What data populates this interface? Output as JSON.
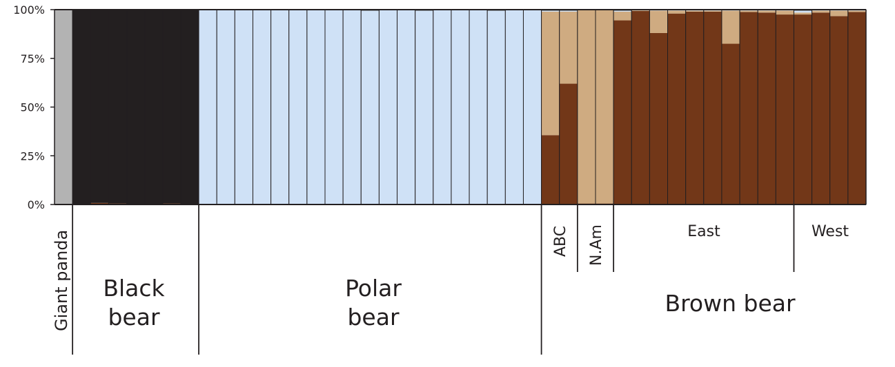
{
  "chart_data": {
    "type": "bar",
    "stacked": true,
    "title": "",
    "xlabel": "",
    "ylabel": "",
    "ylim": [
      0,
      100
    ],
    "y_ticks": [
      "0%",
      "25%",
      "50%",
      "75%",
      "100%"
    ],
    "colors": {
      "giant_panda": "#b3b3b3",
      "black_bear": "#231f20",
      "polar_bear": "#cfe1f6",
      "brown_bear": "#723718",
      "abc_clade": "#cfab81"
    },
    "bar_groups": [
      {
        "name": "Giant panda",
        "count": 1
      },
      {
        "name": "Black bear",
        "count": 7
      },
      {
        "name": "Polar bear",
        "count": 19
      },
      {
        "name": "ABC",
        "count": 2
      },
      {
        "name": "N.Am",
        "count": 2
      },
      {
        "name": "East",
        "count": 10
      },
      {
        "name": "West",
        "count": 4
      }
    ],
    "series": [
      {
        "key": "brown_bear",
        "color": "#723718",
        "values": [
          0,
          0.3,
          0.8,
          0.5,
          0.3,
          0.3,
          0.5,
          0.3,
          0,
          0,
          0,
          0,
          0,
          0,
          0,
          0,
          0,
          0,
          0,
          0,
          0,
          0,
          0,
          0,
          0,
          0,
          0,
          35.6,
          62,
          0.5,
          0.5,
          94.5,
          99.3,
          88,
          98,
          99,
          99,
          82.5,
          98.8,
          98.5,
          97.5,
          97.5,
          98.5,
          96.7,
          98.8
        ]
      },
      {
        "key": "abc_clade",
        "color": "#cfab81",
        "values": [
          0,
          0,
          0,
          0,
          0,
          0,
          0,
          0,
          0,
          0,
          0,
          0,
          0,
          0,
          0,
          0,
          0,
          0,
          0,
          0,
          0,
          0,
          0,
          0,
          0,
          0,
          0,
          63.4,
          37,
          99.5,
          99.5,
          4.5,
          0.3,
          11.5,
          1.5,
          0.5,
          0.5,
          17,
          0.7,
          1,
          2,
          1,
          1,
          2.8,
          0.7
        ]
      },
      {
        "key": "polar_bear",
        "color": "#cfe1f6",
        "values": [
          0,
          0,
          0,
          0,
          0,
          0,
          0,
          0,
          100,
          100,
          100,
          100,
          100,
          100,
          100,
          100,
          100,
          99.5,
          100,
          100,
          99.5,
          100,
          100,
          100,
          99.5,
          100,
          100,
          0.5,
          0.5,
          0,
          0,
          0.5,
          0.2,
          0.2,
          0.2,
          0.2,
          0.2,
          0.2,
          0.2,
          0.2,
          0.2,
          1,
          0.3,
          0.3,
          0.3
        ]
      },
      {
        "key": "black_bear",
        "color": "#231f20",
        "values": [
          0,
          99.7,
          99.2,
          99.5,
          99.7,
          99.7,
          99.5,
          99.7,
          0,
          0,
          0,
          0,
          0,
          0,
          0,
          0,
          0,
          0.5,
          0,
          0,
          0.5,
          0,
          0,
          0,
          0.5,
          0,
          0,
          0.5,
          0.5,
          0,
          0,
          0.5,
          0.2,
          0.3,
          0.3,
          0.3,
          0.3,
          0.3,
          0.3,
          0.3,
          0.3,
          0.5,
          0.2,
          0.2,
          0.2
        ]
      },
      {
        "key": "giant_panda",
        "color": "#b3b3b3",
        "values": [
          100,
          0,
          0,
          0,
          0,
          0,
          0,
          0,
          0,
          0,
          0,
          0,
          0,
          0,
          0,
          0,
          0,
          0,
          0,
          0,
          0,
          0,
          0,
          0,
          0,
          0,
          0,
          0,
          0,
          0,
          0,
          0,
          0,
          0,
          0,
          0,
          0,
          0,
          0,
          0,
          0,
          0,
          0,
          0,
          0
        ]
      }
    ],
    "labels": {
      "giant_panda": "Giant panda",
      "black_bear": [
        "Black",
        "bear"
      ],
      "polar_bear": [
        "Polar",
        "bear"
      ],
      "abc": "ABC",
      "n_am": "N.Am",
      "east": "East",
      "west": "West",
      "brown_bear": "Brown bear"
    }
  }
}
